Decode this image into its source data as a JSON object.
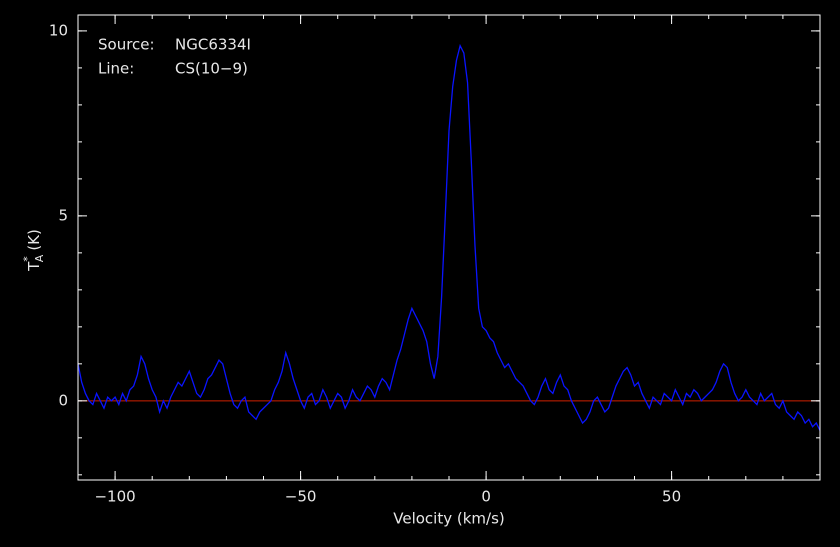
{
  "chart_data": {
    "type": "line",
    "annotations": [
      {
        "label": "Source:",
        "value": "NGC6334I"
      },
      {
        "label": "Line:",
        "value": "CS(10−9)"
      }
    ],
    "xlabel": "Velocity (km/s)",
    "ylabel": {
      "base": "T",
      "sup": "*",
      "sub": "A",
      "unit": "(K)"
    },
    "xlim": [
      -110,
      90
    ],
    "ylim": [
      -2.14,
      10.43
    ],
    "xticks": [
      {
        "value": -100,
        "label": "−100"
      },
      {
        "value": -50,
        "label": "−50"
      },
      0,
      50
    ],
    "yticks": [
      0,
      5,
      10
    ],
    "xminorticks": [
      -110,
      -100,
      -90,
      -80,
      -70,
      -60,
      -50,
      -40,
      -30,
      -20,
      -10,
      0,
      10,
      20,
      30,
      40,
      50,
      60,
      70,
      80,
      90
    ],
    "yminorticks": [
      -2,
      -1,
      0,
      1,
      2,
      3,
      4,
      5,
      6,
      7,
      8,
      9,
      10
    ],
    "baseline": 0,
    "baseline_color": "#d02000",
    "x": [
      -110,
      -109,
      -108,
      -107,
      -106,
      -105,
      -104,
      -103,
      -102,
      -101,
      -100,
      -99,
      -98,
      -97,
      -96,
      -95,
      -94,
      -93,
      -92,
      -91,
      -90,
      -89,
      -88,
      -87,
      -86,
      -85,
      -84,
      -83,
      -82,
      -81,
      -80,
      -79,
      -78,
      -77,
      -76,
      -75,
      -74,
      -73,
      -72,
      -71,
      -70,
      -69,
      -68,
      -67,
      -66,
      -65,
      -64,
      -63,
      -62,
      -61,
      -60,
      -59,
      -58,
      -57,
      -56,
      -55,
      -54,
      -53,
      -52,
      -51,
      -50,
      -49,
      -48,
      -47,
      -46,
      -45,
      -44,
      -43,
      -42,
      -41,
      -40,
      -39,
      -38,
      -37,
      -36,
      -35,
      -34,
      -33,
      -32,
      -31,
      -30,
      -29,
      -28,
      -27,
      -26,
      -25,
      -24,
      -23,
      -22,
      -21,
      -20,
      -19,
      -18,
      -17,
      -16,
      -15,
      -14,
      -13,
      -12,
      -11,
      -10,
      -9,
      -8,
      -7,
      -6,
      -5,
      -4,
      -3,
      -2,
      -1,
      0,
      1,
      2,
      3,
      4,
      5,
      6,
      7,
      8,
      9,
      10,
      11,
      12,
      13,
      14,
      15,
      16,
      17,
      18,
      19,
      20,
      21,
      22,
      23,
      24,
      25,
      26,
      27,
      28,
      29,
      30,
      31,
      32,
      33,
      34,
      35,
      36,
      37,
      38,
      39,
      40,
      41,
      42,
      43,
      44,
      45,
      46,
      47,
      48,
      49,
      50,
      51,
      52,
      53,
      54,
      55,
      56,
      57,
      58,
      59,
      60,
      61,
      62,
      63,
      64,
      65,
      66,
      67,
      68,
      69,
      70,
      71,
      72,
      73,
      74,
      75,
      76,
      77,
      78,
      79,
      80,
      81,
      82,
      83,
      84,
      85,
      86,
      87,
      88,
      89,
      90
    ],
    "series": [
      {
        "color": "#0a14ff",
        "values": [
          1.0,
          0.5,
          0.2,
          0.0,
          -0.1,
          0.2,
          0.0,
          -0.2,
          0.1,
          0.0,
          0.1,
          -0.1,
          0.2,
          0.0,
          0.3,
          0.4,
          0.7,
          1.2,
          1.0,
          0.6,
          0.3,
          0.1,
          -0.3,
          0.0,
          -0.2,
          0.1,
          0.3,
          0.5,
          0.4,
          0.6,
          0.8,
          0.5,
          0.2,
          0.1,
          0.3,
          0.6,
          0.7,
          0.9,
          1.1,
          1.0,
          0.6,
          0.2,
          -0.1,
          -0.2,
          0.0,
          0.1,
          -0.3,
          -0.4,
          -0.5,
          -0.3,
          -0.2,
          -0.1,
          0.0,
          0.3,
          0.5,
          0.8,
          1.3,
          1.0,
          0.6,
          0.3,
          0.0,
          -0.2,
          0.1,
          0.2,
          -0.1,
          0.0,
          0.3,
          0.1,
          -0.2,
          0.0,
          0.2,
          0.1,
          -0.2,
          0.0,
          0.3,
          0.1,
          0.0,
          0.2,
          0.4,
          0.3,
          0.1,
          0.4,
          0.6,
          0.5,
          0.3,
          0.7,
          1.1,
          1.4,
          1.8,
          2.2,
          2.5,
          2.3,
          2.1,
          1.9,
          1.6,
          1.0,
          0.6,
          1.2,
          2.8,
          5.0,
          7.3,
          8.5,
          9.2,
          9.6,
          9.4,
          8.6,
          6.5,
          4.2,
          2.5,
          2.0,
          1.9,
          1.7,
          1.6,
          1.3,
          1.1,
          0.9,
          1.0,
          0.8,
          0.6,
          0.5,
          0.4,
          0.2,
          0.0,
          -0.1,
          0.1,
          0.4,
          0.6,
          0.3,
          0.2,
          0.5,
          0.7,
          0.4,
          0.3,
          0.0,
          -0.2,
          -0.4,
          -0.6,
          -0.5,
          -0.3,
          0.0,
          0.1,
          -0.1,
          -0.3,
          -0.2,
          0.1,
          0.4,
          0.6,
          0.8,
          0.9,
          0.7,
          0.4,
          0.5,
          0.2,
          0.0,
          -0.2,
          0.1,
          0.0,
          -0.1,
          0.2,
          0.1,
          0.0,
          0.3,
          0.1,
          -0.1,
          0.2,
          0.1,
          0.3,
          0.2,
          0.0,
          0.1,
          0.2,
          0.3,
          0.5,
          0.8,
          1.0,
          0.9,
          0.5,
          0.2,
          0.0,
          0.1,
          0.3,
          0.1,
          0.0,
          -0.1,
          0.2,
          0.0,
          0.1,
          0.2,
          -0.1,
          -0.2,
          0.0,
          -0.3,
          -0.4,
          -0.5,
          -0.3,
          -0.4,
          -0.6,
          -0.5,
          -0.7,
          -0.6,
          -0.8
        ]
      }
    ]
  }
}
